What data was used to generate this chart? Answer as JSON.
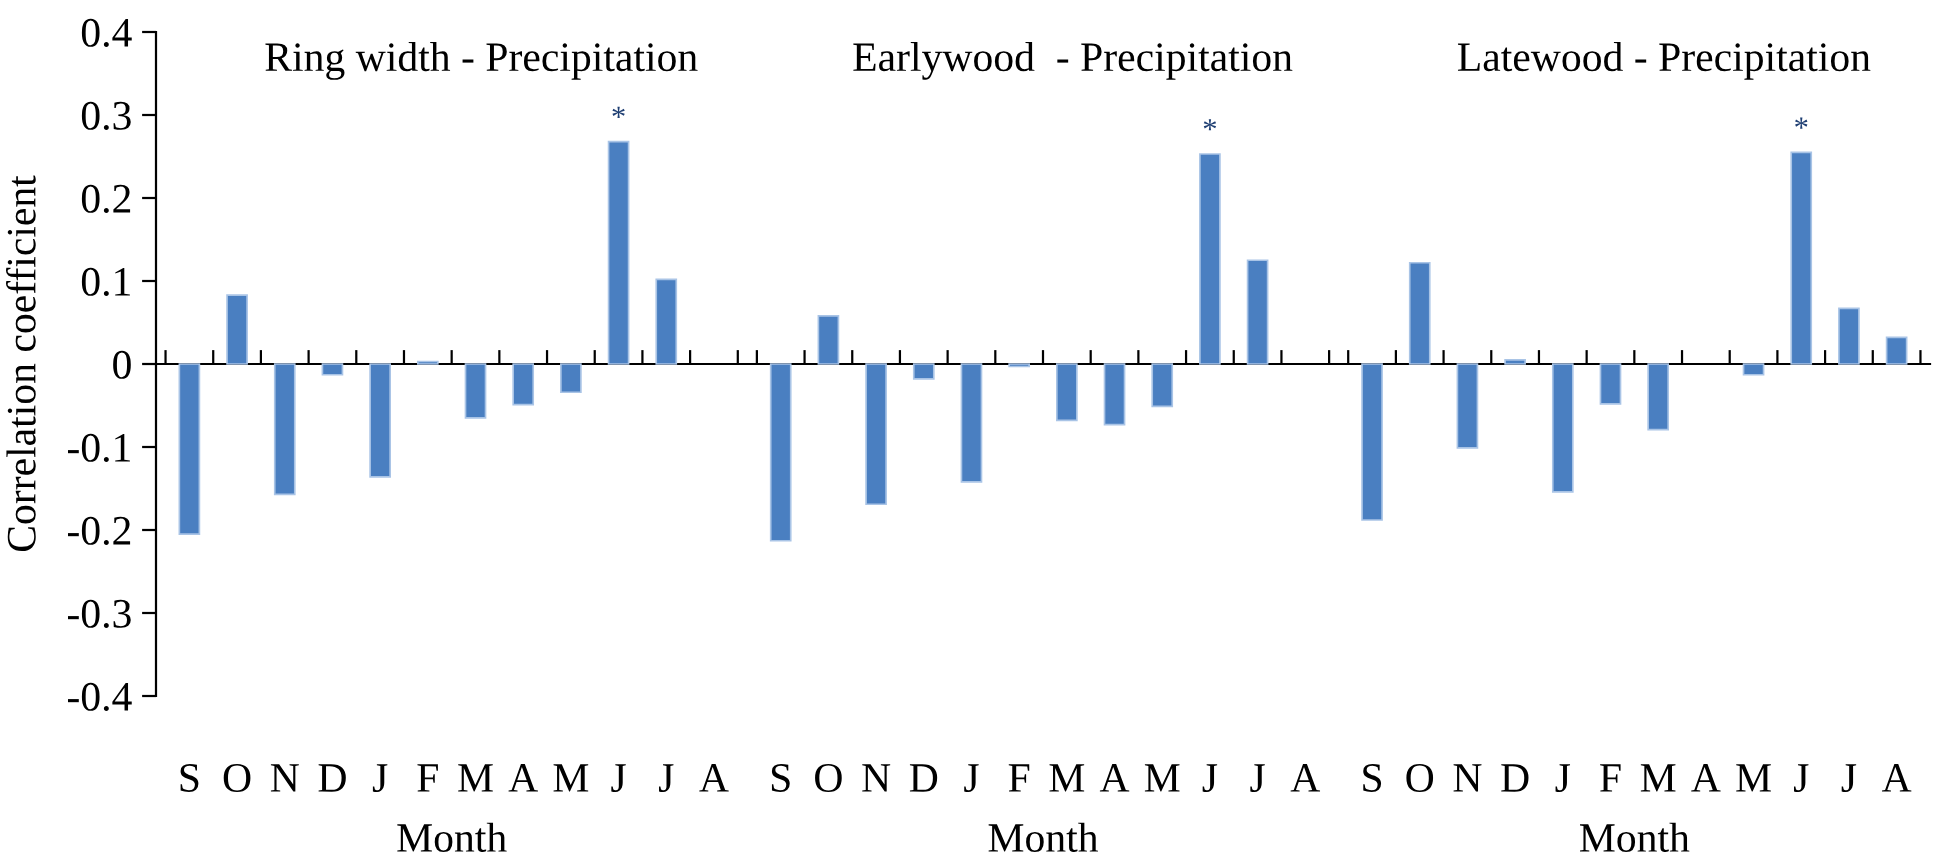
{
  "chart_data": [
    {
      "type": "bar",
      "title": "Ring width - Precipitation",
      "xlabel": "Month",
      "ylabel": "Correlation coefficient",
      "categories": [
        "S",
        "O",
        "N",
        "D",
        "J",
        "F",
        "M",
        "A",
        "M",
        "J",
        "J",
        "A"
      ],
      "color": "#4a7fc1",
      "values": [
        -0.205,
        0.083,
        -0.157,
        -0.013,
        -0.136,
        0.003,
        -0.065,
        -0.049,
        -0.034,
        0.268,
        0.102,
        null
      ],
      "value_labels": [
        null,
        null,
        null,
        null,
        null,
        null,
        null,
        null,
        null,
        "*",
        null,
        null
      ],
      "ylim": [
        -0.4,
        0.4
      ],
      "yticks": [
        -0.4,
        -0.3,
        -0.2,
        -0.1,
        0,
        0.1,
        0.2,
        0.3,
        0.4
      ]
    },
    {
      "type": "bar",
      "title": "Earlywood  - Precipitation",
      "xlabel": "Month",
      "categories": [
        "S",
        "O",
        "N",
        "D",
        "J",
        "F",
        "M",
        "A",
        "M",
        "J",
        "J",
        "A"
      ],
      "color": "#4a7fc1",
      "values": [
        -0.213,
        0.058,
        -0.169,
        -0.018,
        -0.142,
        -0.003,
        -0.068,
        -0.073,
        -0.051,
        0.253,
        0.125,
        null
      ],
      "value_labels": [
        null,
        null,
        null,
        null,
        null,
        null,
        null,
        null,
        null,
        "*",
        null,
        null
      ],
      "ylim": [
        -0.4,
        0.4
      ],
      "tick_labels": "x"
    },
    {
      "type": "bar",
      "title": "Latewood - Precipitation",
      "xlabel": "Month",
      "categories": [
        "S",
        "O",
        "N",
        "D",
        "J",
        "F",
        "M",
        "A",
        "M",
        "J",
        "J",
        "A"
      ],
      "color": "#4a7fc1",
      "values": [
        -0.188,
        0.122,
        -0.101,
        0.005,
        -0.154,
        -0.048,
        -0.079,
        null,
        -0.013,
        0.255,
        0.067,
        0.032
      ],
      "value_labels": [
        null,
        null,
        null,
        null,
        null,
        null,
        null,
        null,
        null,
        "*",
        null,
        null
      ],
      "ylim": [
        -0.4,
        0.4
      ],
      "tick_labels": "x"
    }
  ]
}
